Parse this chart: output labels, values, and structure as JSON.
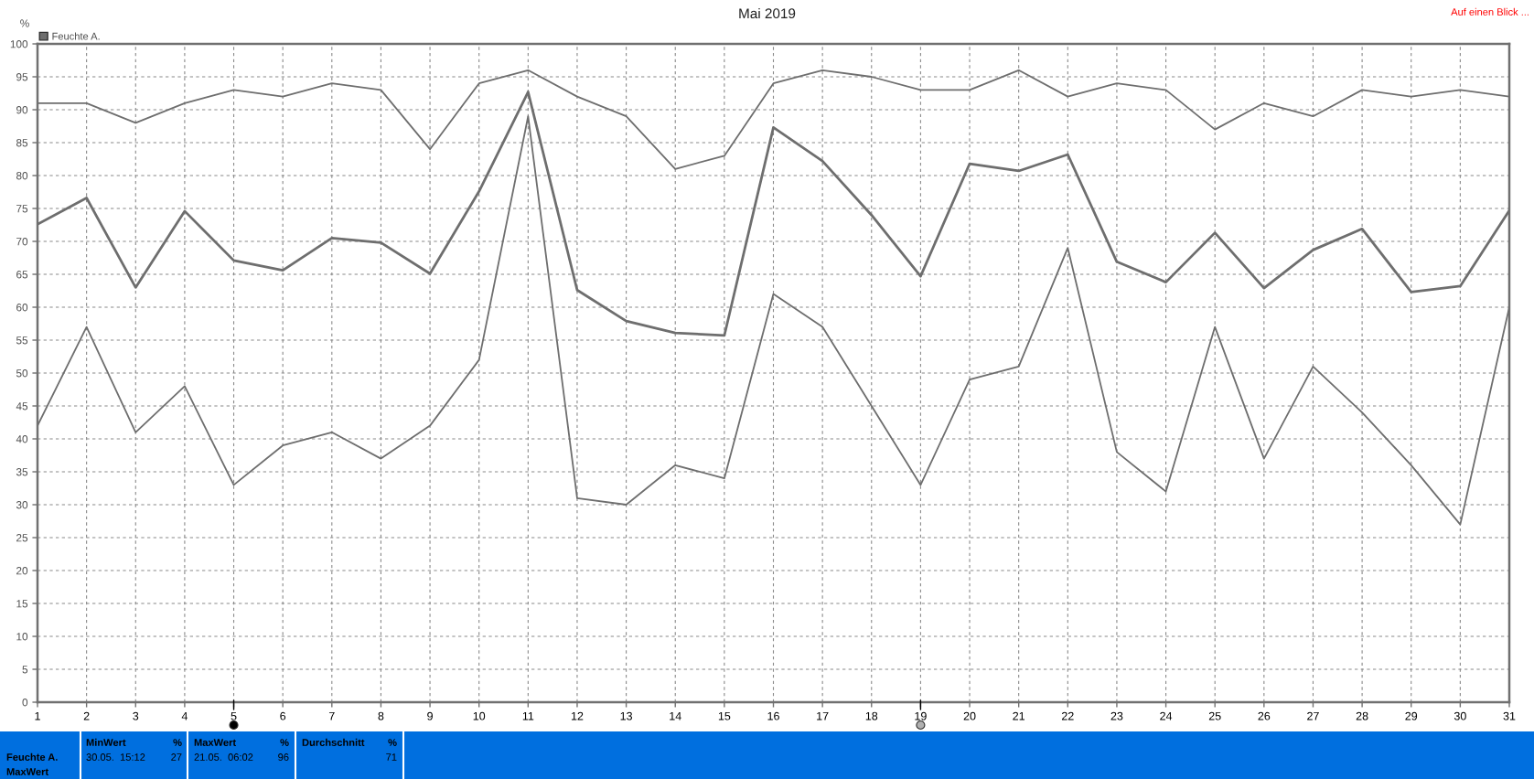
{
  "chart_data": {
    "type": "line",
    "title": "Mai 2019",
    "ylabel": "%",
    "x": [
      1,
      2,
      3,
      4,
      5,
      6,
      7,
      8,
      9,
      10,
      11,
      12,
      13,
      14,
      15,
      16,
      17,
      18,
      19,
      20,
      21,
      22,
      23,
      24,
      25,
      26,
      27,
      28,
      29,
      30,
      31
    ],
    "series": [
      {
        "name": "Feuchte A.",
        "color": "#6e6e6e",
        "values": [
          72.6,
          76.6,
          63,
          74.6,
          67.1,
          65.6,
          70.5,
          69.8,
          65.1,
          77.6,
          92.7,
          62.6,
          57.9,
          56.1,
          55.7,
          87.3,
          82.2,
          74,
          64.7,
          81.8,
          80.7,
          83.2,
          66.9,
          63.8,
          71.3,
          62.9,
          68.7,
          71.9,
          62.3,
          63.2,
          74.7
        ]
      },
      {
        "color": "#6e6e6e",
        "values": [
          91,
          91,
          88,
          91,
          93,
          92,
          94,
          93,
          84,
          94,
          96,
          92,
          89,
          81,
          83,
          94,
          96,
          95,
          93,
          93,
          96,
          92,
          94,
          93,
          87,
          91,
          89,
          93,
          92,
          93,
          92
        ]
      },
      {
        "color": "#6e6e6e",
        "values": [
          42,
          57,
          41,
          48,
          33,
          39,
          41,
          37,
          42,
          52,
          89,
          31,
          30,
          36,
          34,
          62,
          57,
          45,
          33,
          49,
          51,
          69,
          38,
          32,
          57,
          37,
          51,
          44,
          36,
          27,
          60
        ]
      }
    ],
    "xlim": [
      1,
      31
    ],
    "xticks": [
      1,
      2,
      3,
      4,
      5,
      6,
      7,
      8,
      9,
      10,
      11,
      12,
      13,
      14,
      15,
      16,
      17,
      18,
      19,
      20,
      21,
      22,
      23,
      24,
      25,
      26,
      27,
      28,
      29,
      30,
      31
    ],
    "ylim": [
      0,
      100
    ],
    "yticks": [
      0,
      5,
      10,
      15,
      20,
      25,
      30,
      35,
      40,
      45,
      50,
      55,
      60,
      65,
      70,
      75,
      80,
      85,
      90,
      95,
      100
    ],
    "grid": true,
    "legend": "top left",
    "annotations": [
      "Auf einen Blick ...",
      "Feuchte A.",
      "MaxWert",
      "MinWert",
      "%",
      "30.05.  15:12",
      "27",
      "MaxWert",
      "%",
      "21.05.  06:02",
      "96",
      "Durchschnitt",
      "%",
      "71"
    ]
  }
}
